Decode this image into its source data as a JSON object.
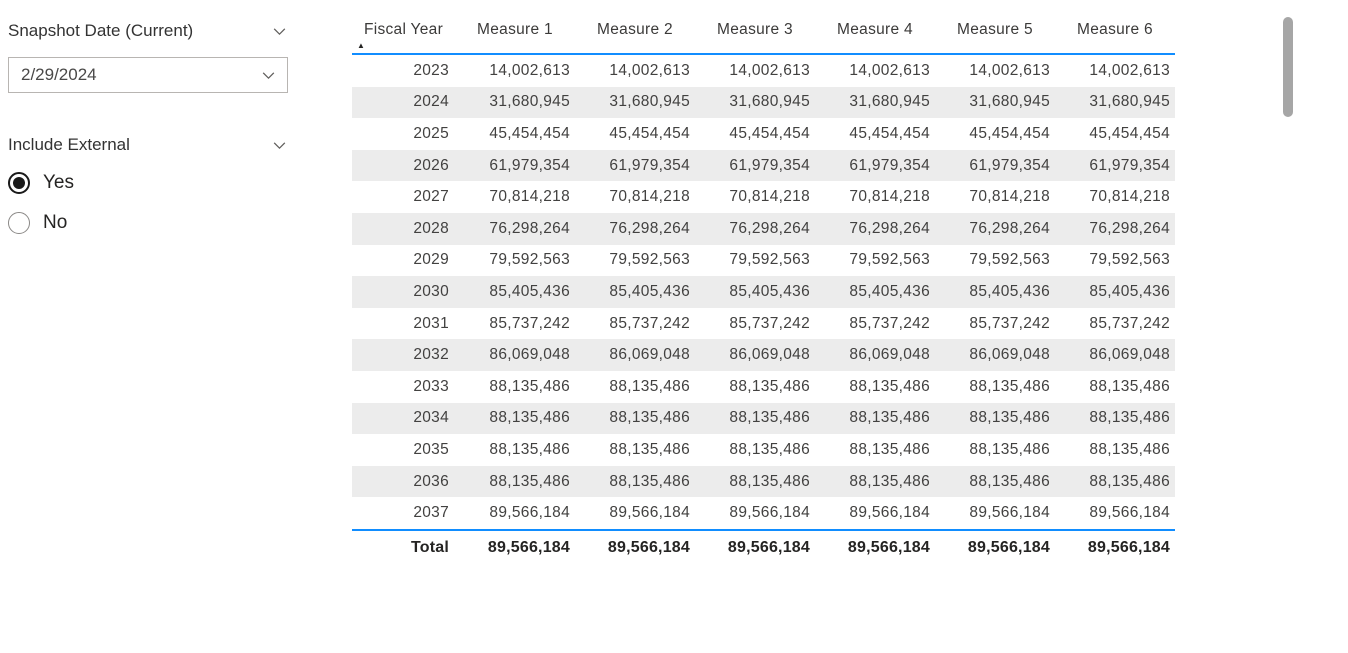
{
  "colors": {
    "accent": "#118DFF",
    "alt_row": "#ECECEC",
    "scrollbar_thumb": "#A6A6A6"
  },
  "icons": {
    "sort_ascending": "▲",
    "chevron_down": "∨"
  },
  "slicers": {
    "snapshot_date": {
      "label": "Snapshot Date (Current)",
      "value": "2/29/2024"
    },
    "include_external": {
      "label": "Include External",
      "options": [
        {
          "label": "Yes",
          "selected": true
        },
        {
          "label": "No",
          "selected": false
        }
      ]
    }
  },
  "table": {
    "columns": [
      "Fiscal Year",
      "Measure 1",
      "Measure 2",
      "Measure 3",
      "Measure 4",
      "Measure 5",
      "Measure 6"
    ],
    "sort": {
      "column": "Fiscal Year",
      "direction": "ascending"
    },
    "rows": [
      [
        "2023",
        "14,002,613",
        "14,002,613",
        "14,002,613",
        "14,002,613",
        "14,002,613",
        "14,002,613"
      ],
      [
        "2024",
        "31,680,945",
        "31,680,945",
        "31,680,945",
        "31,680,945",
        "31,680,945",
        "31,680,945"
      ],
      [
        "2025",
        "45,454,454",
        "45,454,454",
        "45,454,454",
        "45,454,454",
        "45,454,454",
        "45,454,454"
      ],
      [
        "2026",
        "61,979,354",
        "61,979,354",
        "61,979,354",
        "61,979,354",
        "61,979,354",
        "61,979,354"
      ],
      [
        "2027",
        "70,814,218",
        "70,814,218",
        "70,814,218",
        "70,814,218",
        "70,814,218",
        "70,814,218"
      ],
      [
        "2028",
        "76,298,264",
        "76,298,264",
        "76,298,264",
        "76,298,264",
        "76,298,264",
        "76,298,264"
      ],
      [
        "2029",
        "79,592,563",
        "79,592,563",
        "79,592,563",
        "79,592,563",
        "79,592,563",
        "79,592,563"
      ],
      [
        "2030",
        "85,405,436",
        "85,405,436",
        "85,405,436",
        "85,405,436",
        "85,405,436",
        "85,405,436"
      ],
      [
        "2031",
        "85,737,242",
        "85,737,242",
        "85,737,242",
        "85,737,242",
        "85,737,242",
        "85,737,242"
      ],
      [
        "2032",
        "86,069,048",
        "86,069,048",
        "86,069,048",
        "86,069,048",
        "86,069,048",
        "86,069,048"
      ],
      [
        "2033",
        "88,135,486",
        "88,135,486",
        "88,135,486",
        "88,135,486",
        "88,135,486",
        "88,135,486"
      ],
      [
        "2034",
        "88,135,486",
        "88,135,486",
        "88,135,486",
        "88,135,486",
        "88,135,486",
        "88,135,486"
      ],
      [
        "2035",
        "88,135,486",
        "88,135,486",
        "88,135,486",
        "88,135,486",
        "88,135,486",
        "88,135,486"
      ],
      [
        "2036",
        "88,135,486",
        "88,135,486",
        "88,135,486",
        "88,135,486",
        "88,135,486",
        "88,135,486"
      ],
      [
        "2037",
        "89,566,184",
        "89,566,184",
        "89,566,184",
        "89,566,184",
        "89,566,184",
        "89,566,184"
      ]
    ],
    "total_row": [
      "Total",
      "89,566,184",
      "89,566,184",
      "89,566,184",
      "89,566,184",
      "89,566,184",
      "89,566,184"
    ]
  }
}
